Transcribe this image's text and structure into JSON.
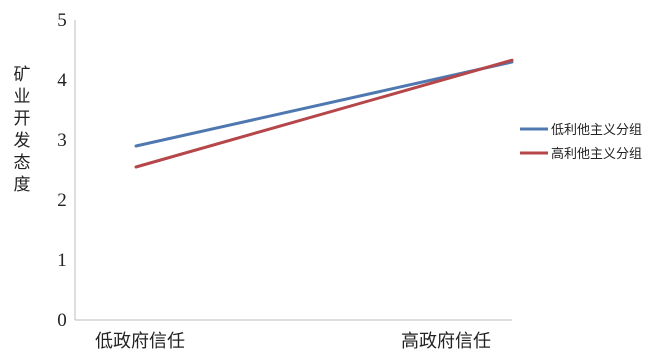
{
  "chart_data": {
    "type": "line",
    "title": "",
    "xlabel": "",
    "ylabel": "矿业开发态度",
    "categories": [
      "低政府信任",
      "高政府信任"
    ],
    "ylim": [
      0,
      5
    ],
    "yticks": [
      0,
      1,
      2,
      3,
      4,
      5
    ],
    "grid": false,
    "legend_position": "right",
    "series": [
      {
        "name": "低利他主义分组",
        "values": [
          2.9,
          4.3
        ],
        "color": "#4f78b0"
      },
      {
        "name": "高利他主义分组",
        "values": [
          2.55,
          4.33
        ],
        "color": "#b5474a"
      }
    ]
  }
}
